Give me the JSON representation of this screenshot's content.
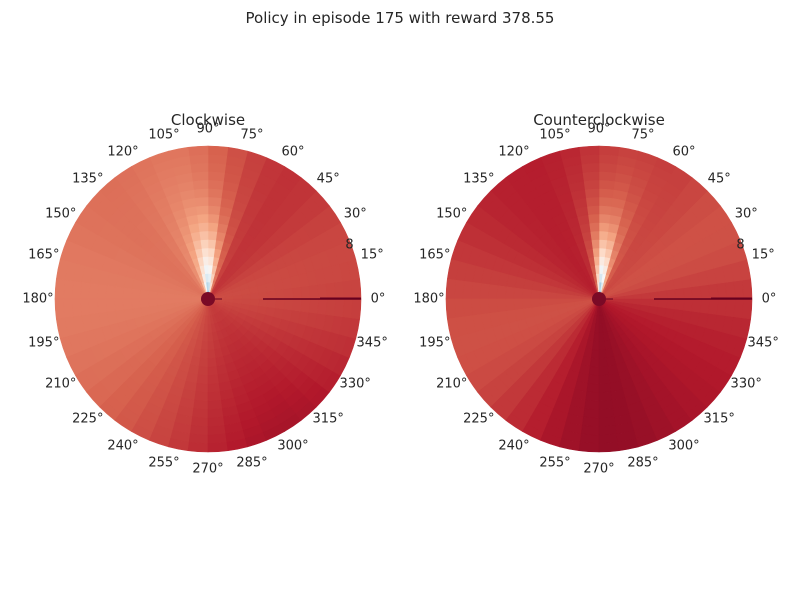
{
  "figure": {
    "suptitle": "Policy in episode 175 with reward 378.55"
  },
  "chart_data": [
    {
      "type": "heatmap",
      "projection": "polar",
      "title": "Clockwise",
      "theta_tick_labels": [
        "0°",
        "15°",
        "30°",
        "45°",
        "60°",
        "75°",
        "90°",
        "105°",
        "120°",
        "135°",
        "150°",
        "165°",
        "180°",
        "195°",
        "210°",
        "225°",
        "240°",
        "255°",
        "270°",
        "285°",
        "300°",
        "315°",
        "330°",
        "345°"
      ],
      "r_tick_labels": [
        "8"
      ],
      "colormap": "RdBu",
      "colors": {
        "high": "#67001f",
        "mid": "#f7f7f7",
        "low": "#053061"
      },
      "grid": false,
      "pattern": "mostly warm red field; light pale wedge near 75°–110° with a small blue spot close to the centre; dark line along 0°; dark centre point"
    },
    {
      "type": "heatmap",
      "projection": "polar",
      "title": "Counterclockwise",
      "theta_tick_labels": [
        "0°",
        "15°",
        "30°",
        "45°",
        "60°",
        "75°",
        "90°",
        "105°",
        "120°",
        "135°",
        "150°",
        "165°",
        "180°",
        "195°",
        "210°",
        "225°",
        "240°",
        "255°",
        "270°",
        "285°",
        "300°",
        "315°",
        "330°",
        "345°"
      ],
      "r_tick_labels": [
        "8"
      ],
      "colormap": "RdBu",
      "colors": {
        "high": "#67001f",
        "mid": "#f7f7f7",
        "low": "#053061"
      },
      "grid": false,
      "pattern": "mostly deep red field; pale wedge near 70°–95° with a small blue spot close to the centre; dark line along 0°; dark centre point"
    }
  ]
}
